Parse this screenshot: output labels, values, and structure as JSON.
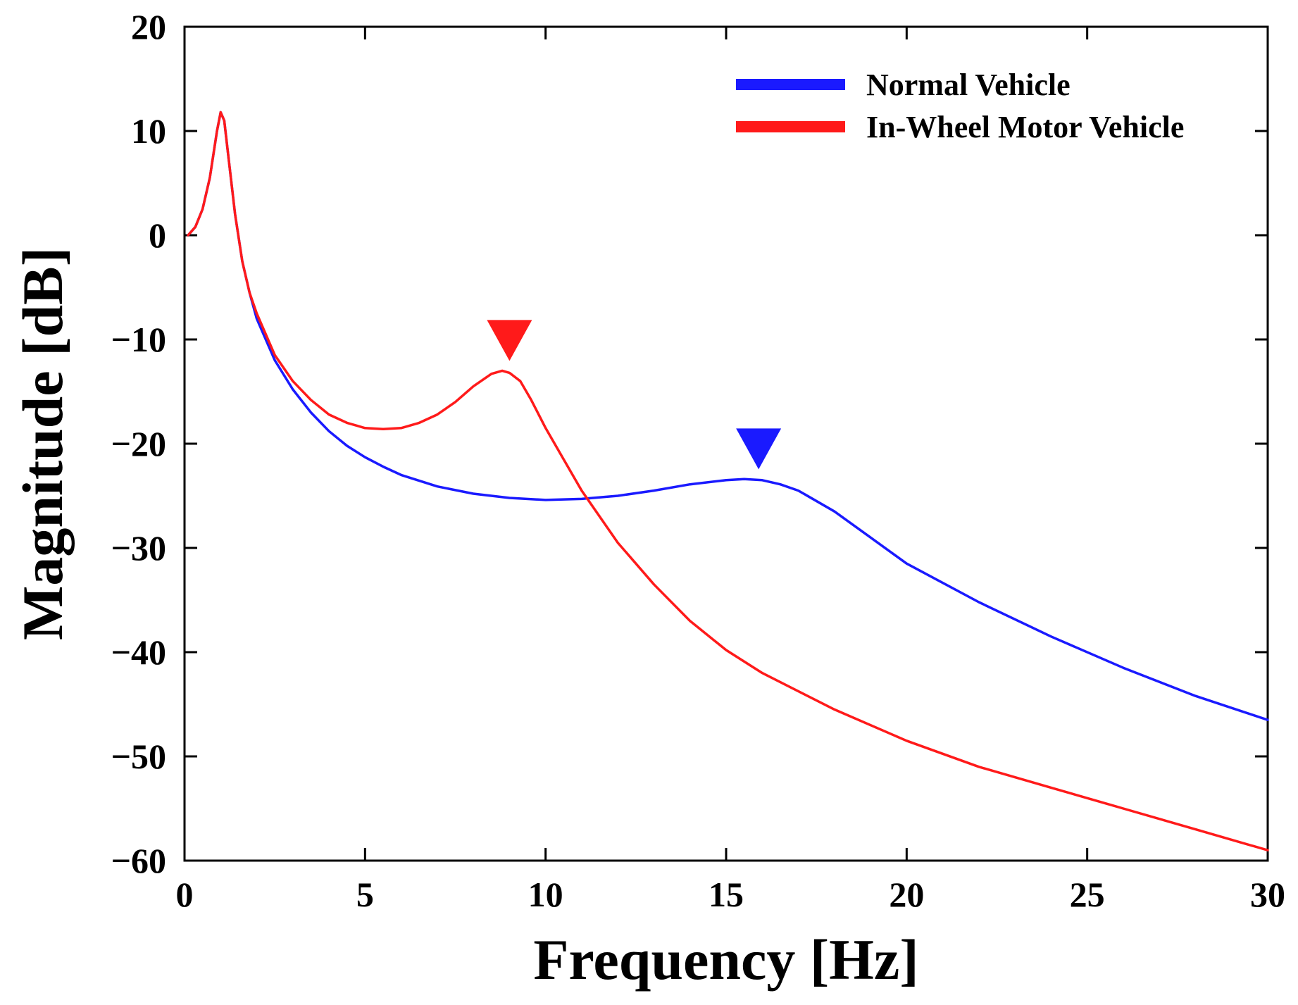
{
  "chart_data": {
    "type": "line",
    "title": "",
    "xlabel": "Frequency [Hz]",
    "ylabel": "Magnitude [dB]",
    "xlim": [
      0,
      30
    ],
    "ylim": [
      -60,
      20
    ],
    "xticks": [
      0,
      5,
      10,
      15,
      20,
      25,
      30
    ],
    "yticks": [
      20,
      10,
      0,
      -10,
      -20,
      -30,
      -40,
      -50,
      -60
    ],
    "ytick_labels": [
      "20",
      "10",
      "0",
      "−10",
      "−20",
      "−30",
      "−40",
      "−50",
      "−60"
    ],
    "grid": false,
    "legend_position": "top-right",
    "series": [
      {
        "name": "Normal Vehicle",
        "color": "#1a1aff",
        "x": [
          0.1,
          0.3,
          0.5,
          0.7,
          0.9,
          1.0,
          1.1,
          1.2,
          1.4,
          1.6,
          1.8,
          2.0,
          2.5,
          3.0,
          3.5,
          4.0,
          4.5,
          5.0,
          5.5,
          6.0,
          7.0,
          8.0,
          9.0,
          10.0,
          11.0,
          12.0,
          13.0,
          14.0,
          15.0,
          15.5,
          16.0,
          16.5,
          17.0,
          18.0,
          19.0,
          20.0,
          22.0,
          24.0,
          26.0,
          28.0,
          30.0
        ],
        "y": [
          0.0,
          0.8,
          2.5,
          5.5,
          10.0,
          11.8,
          11.0,
          8.0,
          2.0,
          -2.5,
          -5.5,
          -8.0,
          -12.0,
          -14.8,
          -17.0,
          -18.8,
          -20.2,
          -21.3,
          -22.2,
          -23.0,
          -24.1,
          -24.8,
          -25.2,
          -25.4,
          -25.3,
          -25.0,
          -24.5,
          -23.9,
          -23.5,
          -23.4,
          -23.5,
          -23.9,
          -24.5,
          -26.5,
          -29.0,
          -31.5,
          -35.2,
          -38.5,
          -41.5,
          -44.2,
          -46.5
        ]
      },
      {
        "name": "In-Wheel Motor Vehicle",
        "color": "#ff1a1a",
        "x": [
          0.1,
          0.3,
          0.5,
          0.7,
          0.9,
          1.0,
          1.1,
          1.2,
          1.4,
          1.6,
          1.8,
          2.0,
          2.5,
          3.0,
          3.5,
          4.0,
          4.5,
          5.0,
          5.5,
          6.0,
          6.5,
          7.0,
          7.5,
          8.0,
          8.5,
          8.8,
          9.0,
          9.3,
          9.6,
          10.0,
          10.5,
          11.0,
          12.0,
          13.0,
          14.0,
          15.0,
          16.0,
          18.0,
          20.0,
          22.0,
          24.0,
          26.0,
          28.0,
          30.0
        ],
        "y": [
          0.0,
          0.8,
          2.5,
          5.5,
          10.0,
          11.8,
          11.0,
          8.0,
          2.0,
          -2.5,
          -5.5,
          -7.5,
          -11.5,
          -14.0,
          -15.8,
          -17.2,
          -18.0,
          -18.5,
          -18.6,
          -18.5,
          -18.0,
          -17.2,
          -16.0,
          -14.5,
          -13.3,
          -13.0,
          -13.2,
          -14.0,
          -15.8,
          -18.5,
          -21.5,
          -24.5,
          -29.5,
          -33.5,
          -37.0,
          -39.8,
          -42.0,
          -45.5,
          -48.5,
          -51.0,
          -53.0,
          -55.0,
          -57.0,
          -59.0
        ]
      }
    ],
    "annotations": [
      {
        "type": "peak-marker",
        "series": "In-Wheel Motor Vehicle",
        "x": 9.0,
        "y": -13.0,
        "color": "#ff1a1a"
      },
      {
        "type": "peak-marker",
        "series": "Normal Vehicle",
        "x": 15.9,
        "y": -23.4,
        "color": "#1a1aff"
      }
    ]
  }
}
